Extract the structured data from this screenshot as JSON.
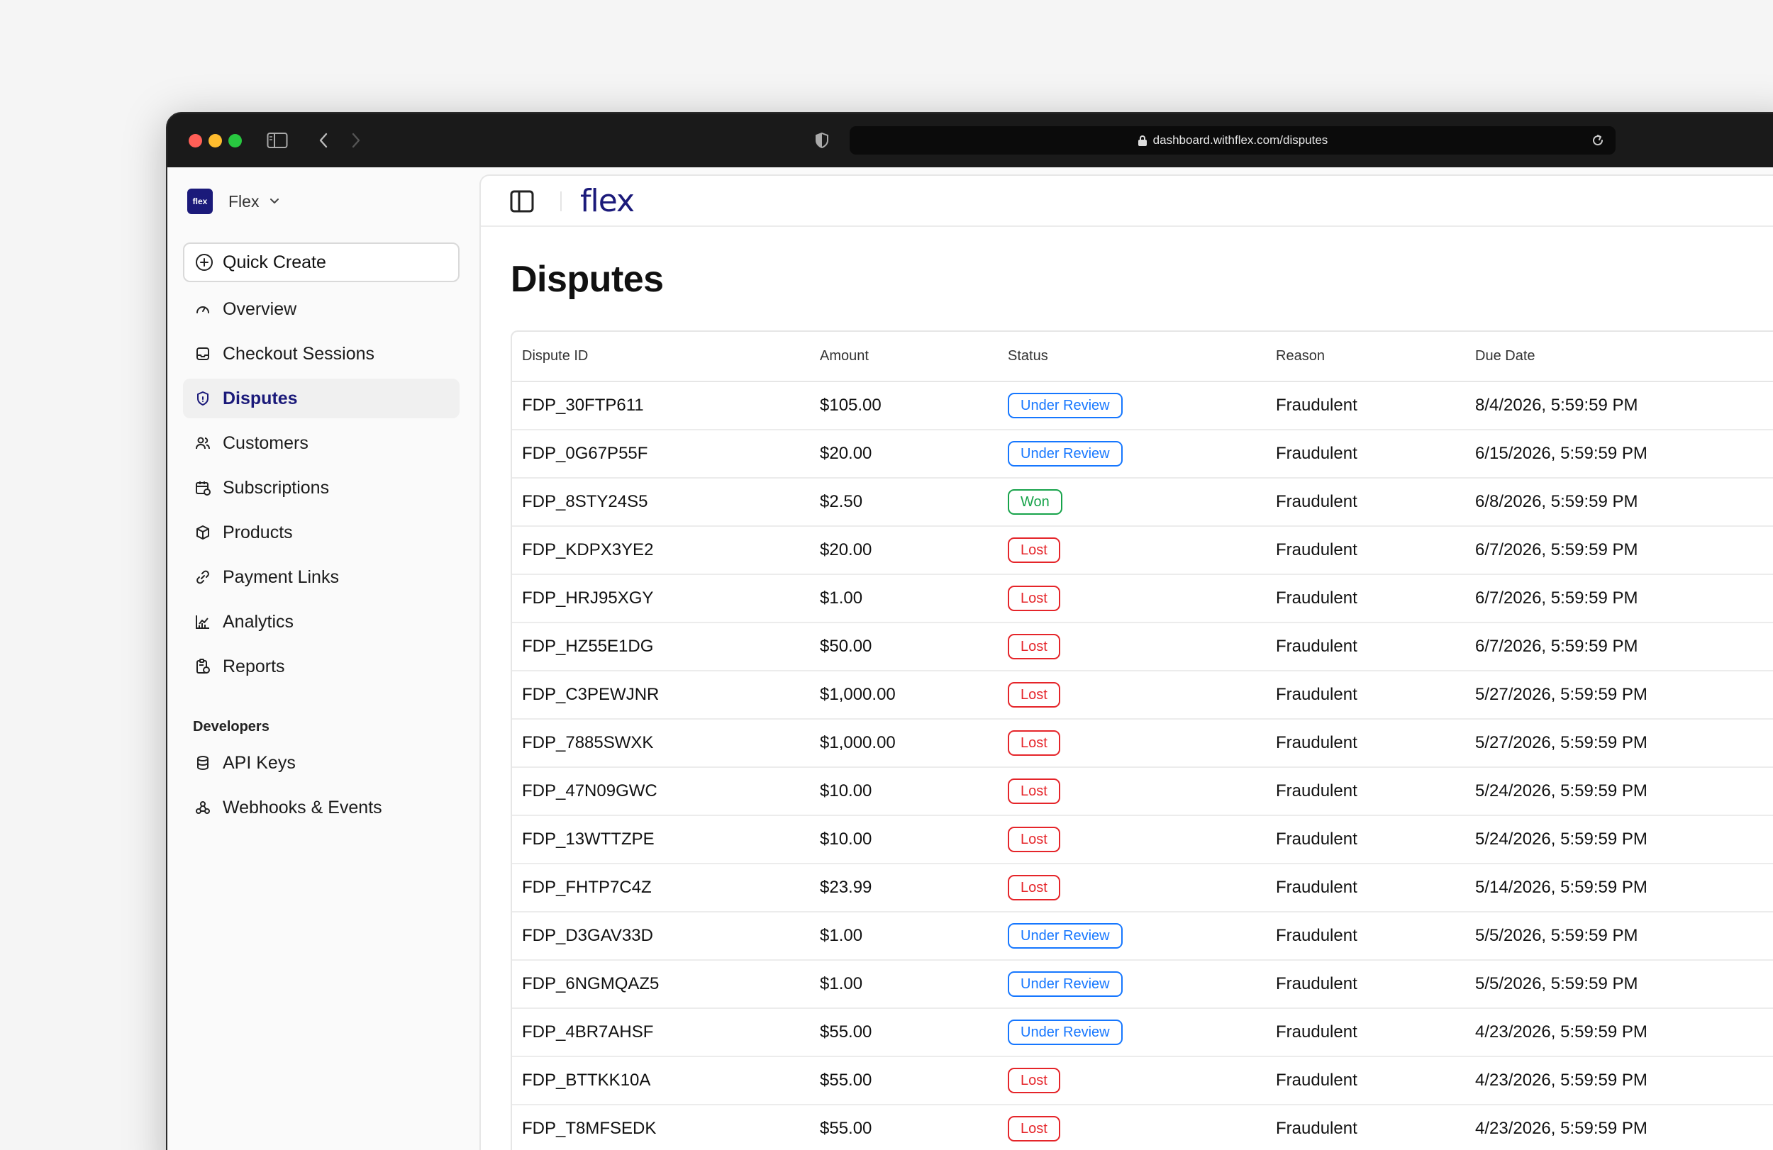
{
  "browser": {
    "url": "dashboard.withflex.com/disputes"
  },
  "org": {
    "logo_text": "flex",
    "name": "Flex"
  },
  "sidebar": {
    "quick_create": "Quick Create",
    "items": [
      {
        "label": "Overview",
        "icon": "gauge-icon"
      },
      {
        "label": "Checkout Sessions",
        "icon": "inbox-icon"
      },
      {
        "label": "Disputes",
        "icon": "shield-icon",
        "active": true
      },
      {
        "label": "Customers",
        "icon": "users-icon"
      },
      {
        "label": "Subscriptions",
        "icon": "calendar-icon"
      },
      {
        "label": "Products",
        "icon": "box-icon"
      },
      {
        "label": "Payment Links",
        "icon": "link-icon"
      },
      {
        "label": "Analytics",
        "icon": "chart-icon"
      },
      {
        "label": "Reports",
        "icon": "report-icon"
      }
    ],
    "developers_label": "Developers",
    "dev_items": [
      {
        "label": "API Keys",
        "icon": "database-icon"
      },
      {
        "label": "Webhooks & Events",
        "icon": "webhook-icon"
      }
    ]
  },
  "header": {
    "brand": "flex"
  },
  "main": {
    "title": "Disputes",
    "columns": [
      "Dispute ID",
      "Amount",
      "Status",
      "Reason",
      "Due Date"
    ],
    "rows": [
      {
        "id": "FDP_30FTP611",
        "amount": "$105.00",
        "status": "Under Review",
        "reason": "Fraudulent",
        "due": "8/4/2026, 5:59:59 PM"
      },
      {
        "id": "FDP_0G67P55F",
        "amount": "$20.00",
        "status": "Under Review",
        "reason": "Fraudulent",
        "due": "6/15/2026, 5:59:59 PM"
      },
      {
        "id": "FDP_8STY24S5",
        "amount": "$2.50",
        "status": "Won",
        "reason": "Fraudulent",
        "due": "6/8/2026, 5:59:59 PM"
      },
      {
        "id": "FDP_KDPX3YE2",
        "amount": "$20.00",
        "status": "Lost",
        "reason": "Fraudulent",
        "due": "6/7/2026, 5:59:59 PM"
      },
      {
        "id": "FDP_HRJ95XGY",
        "amount": "$1.00",
        "status": "Lost",
        "reason": "Fraudulent",
        "due": "6/7/2026, 5:59:59 PM"
      },
      {
        "id": "FDP_HZ55E1DG",
        "amount": "$50.00",
        "status": "Lost",
        "reason": "Fraudulent",
        "due": "6/7/2026, 5:59:59 PM"
      },
      {
        "id": "FDP_C3PEWJNR",
        "amount": "$1,000.00",
        "status": "Lost",
        "reason": "Fraudulent",
        "due": "5/27/2026, 5:59:59 PM"
      },
      {
        "id": "FDP_7885SWXK",
        "amount": "$1,000.00",
        "status": "Lost",
        "reason": "Fraudulent",
        "due": "5/27/2026, 5:59:59 PM"
      },
      {
        "id": "FDP_47N09GWC",
        "amount": "$10.00",
        "status": "Lost",
        "reason": "Fraudulent",
        "due": "5/24/2026, 5:59:59 PM"
      },
      {
        "id": "FDP_13WTTZPE",
        "amount": "$10.00",
        "status": "Lost",
        "reason": "Fraudulent",
        "due": "5/24/2026, 5:59:59 PM"
      },
      {
        "id": "FDP_FHTP7C4Z",
        "amount": "$23.99",
        "status": "Lost",
        "reason": "Fraudulent",
        "due": "5/14/2026, 5:59:59 PM"
      },
      {
        "id": "FDP_D3GAV33D",
        "amount": "$1.00",
        "status": "Under Review",
        "reason": "Fraudulent",
        "due": "5/5/2026, 5:59:59 PM"
      },
      {
        "id": "FDP_6NGMQAZ5",
        "amount": "$1.00",
        "status": "Under Review",
        "reason": "Fraudulent",
        "due": "5/5/2026, 5:59:59 PM"
      },
      {
        "id": "FDP_4BR7AHSF",
        "amount": "$55.00",
        "status": "Under Review",
        "reason": "Fraudulent",
        "due": "4/23/2026, 5:59:59 PM"
      },
      {
        "id": "FDP_BTTKK10A",
        "amount": "$55.00",
        "status": "Lost",
        "reason": "Fraudulent",
        "due": "4/23/2026, 5:59:59 PM"
      },
      {
        "id": "FDP_T8MFSEDK",
        "amount": "$55.00",
        "status": "Lost",
        "reason": "Fraudulent",
        "due": "4/23/2026, 5:59:59 PM"
      }
    ]
  },
  "colors": {
    "brand": "#1b1a7a",
    "review": "#1677ff",
    "won": "#17a34a",
    "lost": "#e5252a"
  }
}
